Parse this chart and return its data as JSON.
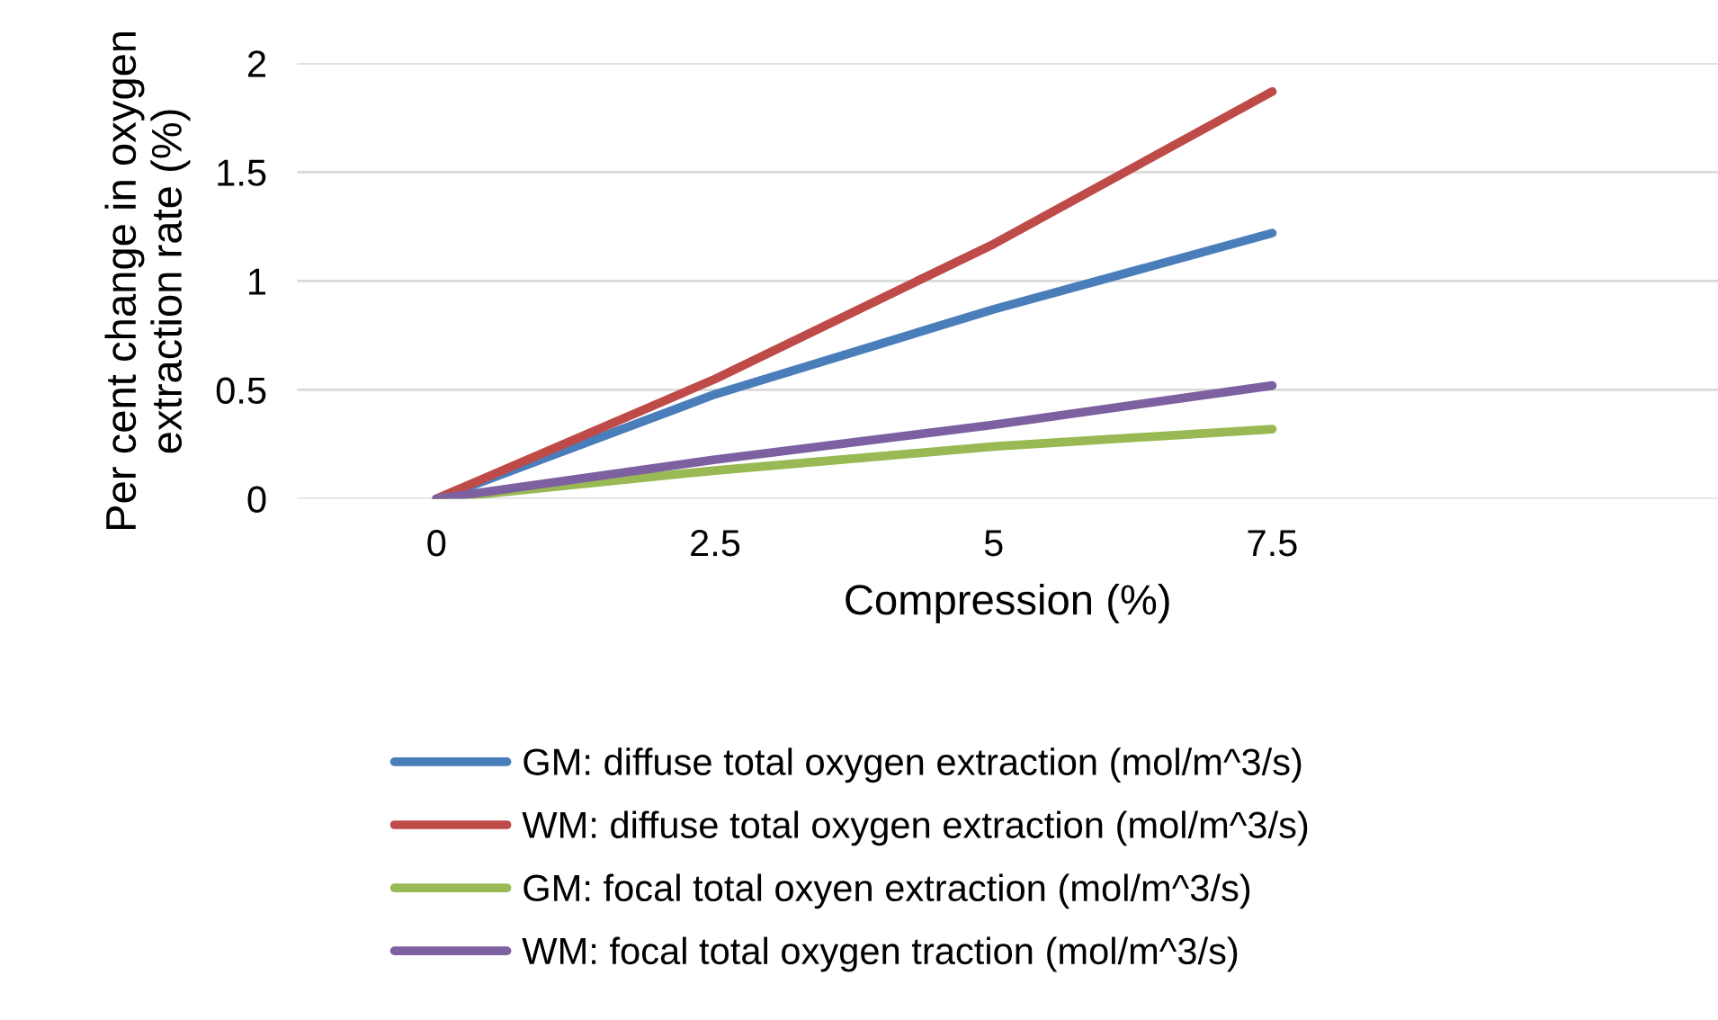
{
  "chart_data": {
    "type": "line",
    "xlabel": "Compression (%)",
    "ylabel": "Per cent change in oxygen\nextraction rate (%)",
    "x": [
      0,
      2.5,
      5,
      7.5
    ],
    "xlim": [
      -1.25,
      11.5
    ],
    "xticks": [
      0,
      2.5,
      5,
      7.5
    ],
    "ylim": [
      0,
      2
    ],
    "yticks": [
      0,
      0.5,
      1,
      1.5,
      2
    ],
    "grid": "y",
    "legend": "bottom",
    "marker": "none",
    "line_style": "solid",
    "series": [
      {
        "name": "GM: diffuse total oxygen extraction (mol/m^3/s)",
        "color": "#4a7ebb",
        "values": [
          0,
          0.48,
          0.87,
          1.22
        ]
      },
      {
        "name": "WM: diffuse total oxygen extraction (mol/m^3/s)",
        "color": "#be4b48",
        "values": [
          0,
          0.55,
          1.17,
          1.87
        ]
      },
      {
        "name": "GM: focal total oxyen extraction (mol/m^3/s)",
        "color": "#98b954",
        "values": [
          0,
          0.13,
          0.24,
          0.32
        ]
      },
      {
        "name": "WM: focal total oxygen traction (mol/m^3/s)",
        "color": "#7d60a0",
        "values": [
          0,
          0.18,
          0.34,
          0.52
        ]
      }
    ]
  }
}
